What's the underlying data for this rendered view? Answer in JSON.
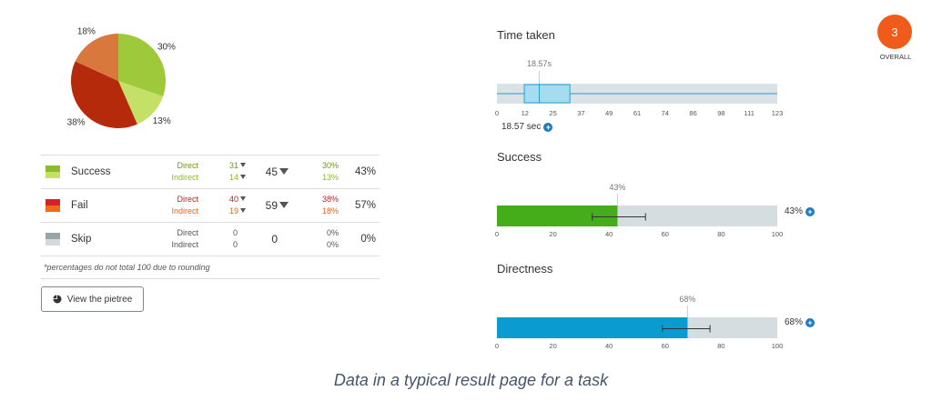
{
  "pie": {
    "slices": [
      {
        "label": "30%",
        "value": 30,
        "color": "#9ec93a"
      },
      {
        "label": "13%",
        "value": 13,
        "color": "#c4e067"
      },
      {
        "label": "38%",
        "value": 38,
        "color": "#b52a0b"
      },
      {
        "label": "18%",
        "value": 18,
        "color": "#d9783d"
      }
    ]
  },
  "table": {
    "rows": [
      {
        "label": "Success",
        "colors": [
          "#8cbb2c",
          "#c4e067"
        ],
        "sub1": "Direct",
        "sub2": "Indirect",
        "count1": "31",
        "count2": "14",
        "total": "45",
        "pct1": "30%",
        "pct2": "13%",
        "pct": "43%",
        "color1": "#6a9a10",
        "color2": "#8cbb2c",
        "filters": true
      },
      {
        "label": "Fail",
        "colors": [
          "#d6202b",
          "#f06a1a"
        ],
        "sub1": "Direct",
        "sub2": "Indirect",
        "count1": "40",
        "count2": "19",
        "total": "59",
        "pct1": "38%",
        "pct2": "18%",
        "pct": "57%",
        "color1": "#c41e1e",
        "color2": "#e8641c",
        "filters": true
      },
      {
        "label": "Skip",
        "colors": [
          "#9aa3aa",
          "#d4d9dc"
        ],
        "sub1": "Direct",
        "sub2": "Indirect",
        "count1": "0",
        "count2": "0",
        "total": "0",
        "pct1": "0%",
        "pct2": "0%",
        "pct": "0%",
        "color1": "#555555",
        "color2": "#555555",
        "filters": false
      }
    ],
    "note": "*percentages do not total 100 due to rounding"
  },
  "pietree_button": {
    "label": "View the pietree",
    "icon": "pie-chart-icon"
  },
  "time_taken": {
    "title": "Time taken",
    "median_label": "18.57s",
    "readout": "18.57 sec",
    "ticks": [
      "0",
      "12",
      "25",
      "37",
      "49",
      "61",
      "74",
      "86",
      "98",
      "111",
      "123"
    ],
    "min": 0,
    "max": 123,
    "q1": 12,
    "median": 18.57,
    "q3": 32,
    "box_color": "#a6dcef",
    "stroke_color": "#2a9fd0"
  },
  "success": {
    "title": "Success",
    "value_label": "43%",
    "readout": "43%",
    "value": 43,
    "ci_low": 34,
    "ci_high": 53,
    "ticks": [
      "0",
      "20",
      "40",
      "60",
      "80",
      "100"
    ],
    "color": "#45ad1a"
  },
  "directness": {
    "title": "Directness",
    "value_label": "68%",
    "readout": "68%",
    "value": 68,
    "ci_low": 59,
    "ci_high": 76,
    "ticks": [
      "0",
      "20",
      "40",
      "60",
      "80",
      "100"
    ],
    "color": "#0a9bd1"
  },
  "overall": {
    "value": "3",
    "label": "OVERALL",
    "color": "#f05a1a"
  },
  "caption": "Data in a typical result page for a task"
}
